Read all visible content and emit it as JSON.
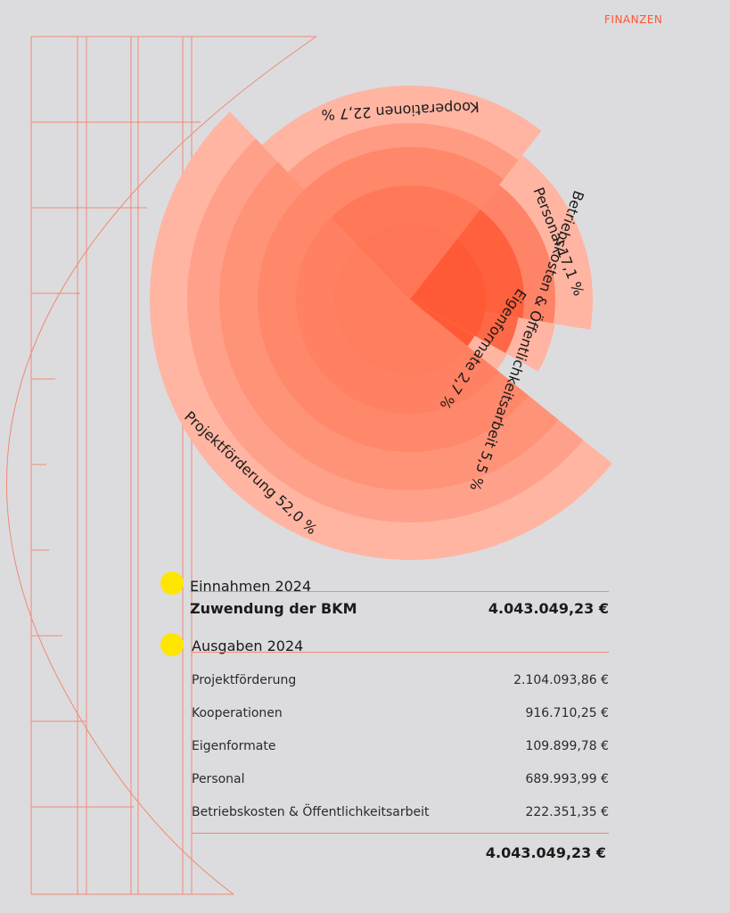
{
  "header": {
    "section": "FINANZEN"
  },
  "chart_data": {
    "type": "pie",
    "variant": "stacked-radius",
    "series": [
      {
        "name": "Projektförderung",
        "label": "52,0 %",
        "value": 52.0
      },
      {
        "name": "Kooperationen",
        "label": "22,7 %",
        "value": 22.7
      },
      {
        "name": "Personal",
        "label": "17,1 %",
        "value": 17.1
      },
      {
        "name": "Betriebskosten & Öffentlichkeitsarbeit",
        "label": "5,5 %",
        "value": 5.5
      },
      {
        "name": "Eigenformate",
        "label": "2,7 %",
        "value": 2.7
      }
    ],
    "colors": {
      "light": "#ffb5a2",
      "mid": "#ff8a6d",
      "dark": "#ff5a36",
      "line": "#f08a74"
    }
  },
  "income": {
    "title": "Einnahmen 2024",
    "label": "Zuwendung der BKM",
    "amount": "4.043.049,23 €"
  },
  "expenses": {
    "title": "Ausgaben 2024",
    "items": [
      {
        "label": "Projektförderung",
        "amount": "2.104.093,86 €"
      },
      {
        "label": "Kooperationen",
        "amount": "916.710,25 €"
      },
      {
        "label": "Eigenformate",
        "amount": "109.899,78 €"
      },
      {
        "label": "Personal",
        "amount": "689.993,99 €"
      },
      {
        "label": "Betriebskosten & Öffentlichkeitsarbeit",
        "amount": "222.351,35 €"
      }
    ],
    "total": "4.043.049,23 €"
  },
  "marker_color": "#ffe600"
}
